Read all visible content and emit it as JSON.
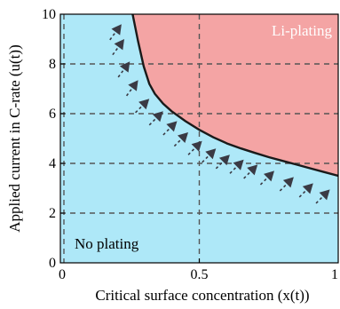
{
  "chart_data": {
    "type": "area",
    "xlabel": "Critical surface concentration (x(t))",
    "ylabel": "Applied current in C-rate  (u(t))",
    "xlim": [
      0,
      1
    ],
    "ylim": [
      0,
      10
    ],
    "xticks": [
      0,
      0.5,
      1
    ],
    "xtick_labels": [
      "0",
      "0.5",
      "1"
    ],
    "yticks": [
      0,
      2,
      4,
      6,
      8,
      10
    ],
    "ytick_labels": [
      "0",
      "2",
      "4",
      "6",
      "8",
      "10"
    ],
    "grid": true,
    "boundary_curve": {
      "x": [
        0.26,
        0.28,
        0.3,
        0.32,
        0.34,
        0.37,
        0.4,
        0.45,
        0.5,
        0.55,
        0.6,
        0.65,
        0.7,
        0.75,
        0.8,
        0.85,
        0.9,
        0.95,
        1.0
      ],
      "y": [
        10.0,
        8.9,
        7.9,
        7.2,
        6.8,
        6.4,
        6.1,
        5.7,
        5.35,
        5.05,
        4.8,
        4.6,
        4.42,
        4.25,
        4.1,
        3.95,
        3.8,
        3.65,
        3.5
      ]
    },
    "regions": [
      {
        "label": "Li-plating",
        "color": "#f4a4a4"
      },
      {
        "label": "No plating",
        "color": "#aee8f8"
      }
    ],
    "arrows": {
      "x": [
        0.22,
        0.23,
        0.25,
        0.28,
        0.32,
        0.37,
        0.42,
        0.46,
        0.51,
        0.56,
        0.61,
        0.66,
        0.71,
        0.77,
        0.84,
        0.91,
        0.97
      ],
      "y": [
        9.6,
        9.0,
        8.1,
        7.35,
        6.6,
        6.1,
        5.7,
        5.25,
        4.9,
        4.6,
        4.35,
        4.15,
        3.95,
        3.7,
        3.45,
        3.2,
        2.95
      ]
    },
    "colors": {
      "plating": "#f4a4a4",
      "no_plating": "#aee8f8",
      "curve": "#1a1a1a",
      "grid": "#555555",
      "arrow": "#3a3a44"
    }
  }
}
